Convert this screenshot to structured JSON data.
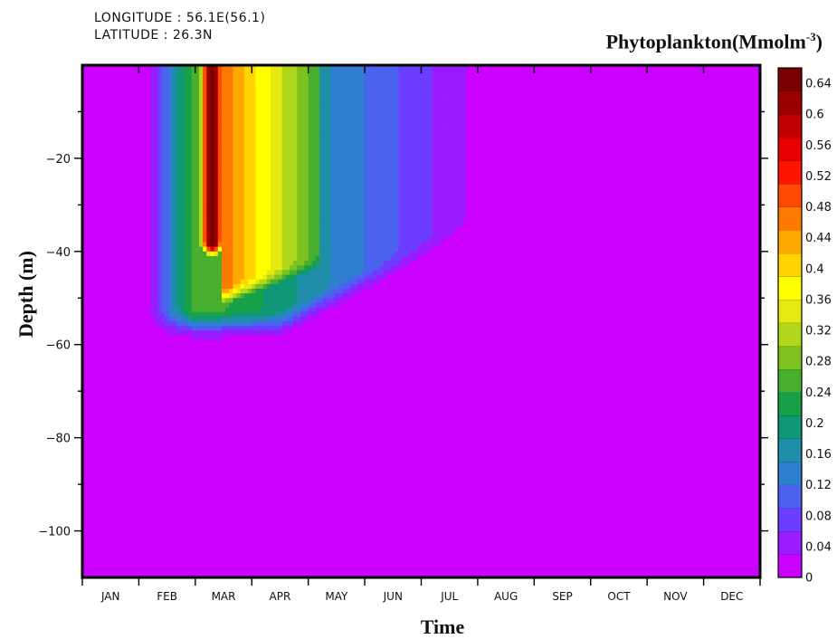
{
  "header": {
    "longitude": "LONGITUDE : 56.1E(56.1)",
    "latitude": "LATITUDE : 26.3N",
    "title_main": "Phytoplankton(Mmolm",
    "title_sup": "-3",
    "title_end": ")"
  },
  "colors": {
    "ramp": [
      "#cc00ff",
      "#9a1bff",
      "#6c3cff",
      "#4b62ee",
      "#2f7fd0",
      "#1f8ea8",
      "#0f9878",
      "#18a048",
      "#49af2e",
      "#7dc21f",
      "#b1d71a",
      "#e6ea12",
      "#ffff00",
      "#ffd400",
      "#ffa800",
      "#ff7a00",
      "#ff4a00",
      "#ff1400",
      "#e60000",
      "#c00000",
      "#9a0000",
      "#7a0000"
    ]
  },
  "chart_data": {
    "type": "heatmap",
    "xlabel": "Time",
    "ylabel": "Depth (m)",
    "x_categories": [
      "JAN",
      "FEB",
      "MAR",
      "APR",
      "MAY",
      "JUN",
      "JUL",
      "AUG",
      "SEP",
      "OCT",
      "NOV",
      "DEC"
    ],
    "x_range": [
      0,
      12
    ],
    "y_range": [
      -110,
      0
    ],
    "y_ticks": [
      -20,
      -40,
      -60,
      -80,
      -100
    ],
    "colorbar": {
      "min": 0,
      "max": 0.66,
      "step": 0.02,
      "labels": [
        "0",
        "0.04",
        "0.08",
        "0.12",
        "0.16",
        "0.2",
        "0.24",
        "0.28",
        "0.32",
        "0.36",
        "0.4",
        "0.44",
        "0.48",
        "0.52",
        "0.56",
        "0.6",
        "0.64"
      ]
    },
    "field_description": "Phytoplankton concentration peaks (~0.64+) in late Feb–early Mar above ~38 m; yellow-green values (0.3–0.44) extend through Mar–Apr down to ~50 m; low values (<0.1) persist to ~Jul above ~60 m; near zero elsewhere."
  }
}
